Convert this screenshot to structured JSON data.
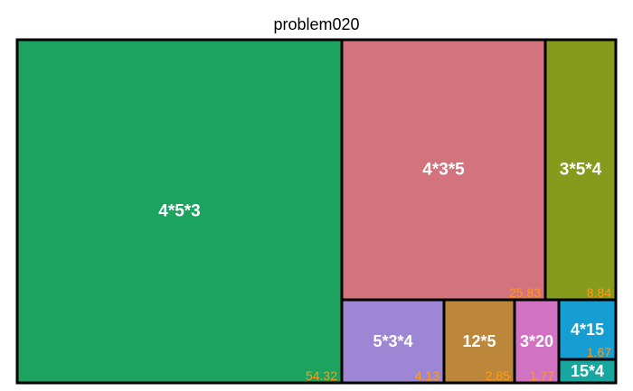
{
  "chart_data": {
    "type": "treemap",
    "title": "problem020",
    "tiles": [
      {
        "label": "4*5*3",
        "value": 54.32,
        "value_text": "54.32",
        "color": "#1ba35f"
      },
      {
        "label": "4*3*5",
        "value": 25.83,
        "value_text": "25.83",
        "color": "#d2737d"
      },
      {
        "label": "3*5*4",
        "value": 8.84,
        "value_text": "8.84",
        "color": "#869a1c"
      },
      {
        "label": "5*3*4",
        "value": 4.13,
        "value_text": "4.13",
        "color": "#9d87d5"
      },
      {
        "label": "12*5",
        "value": 2.85,
        "value_text": "2.85",
        "color": "#bc873a"
      },
      {
        "label": "3*20",
        "value": 1.77,
        "value_text": "1.77",
        "color": "#d173c2"
      },
      {
        "label": "4*15",
        "value": 1.67,
        "value_text": "1.67",
        "color": "#169dd1"
      },
      {
        "label": "15*4",
        "value": 0.59,
        "value_text": "",
        "color": "#17a6a0"
      }
    ]
  }
}
